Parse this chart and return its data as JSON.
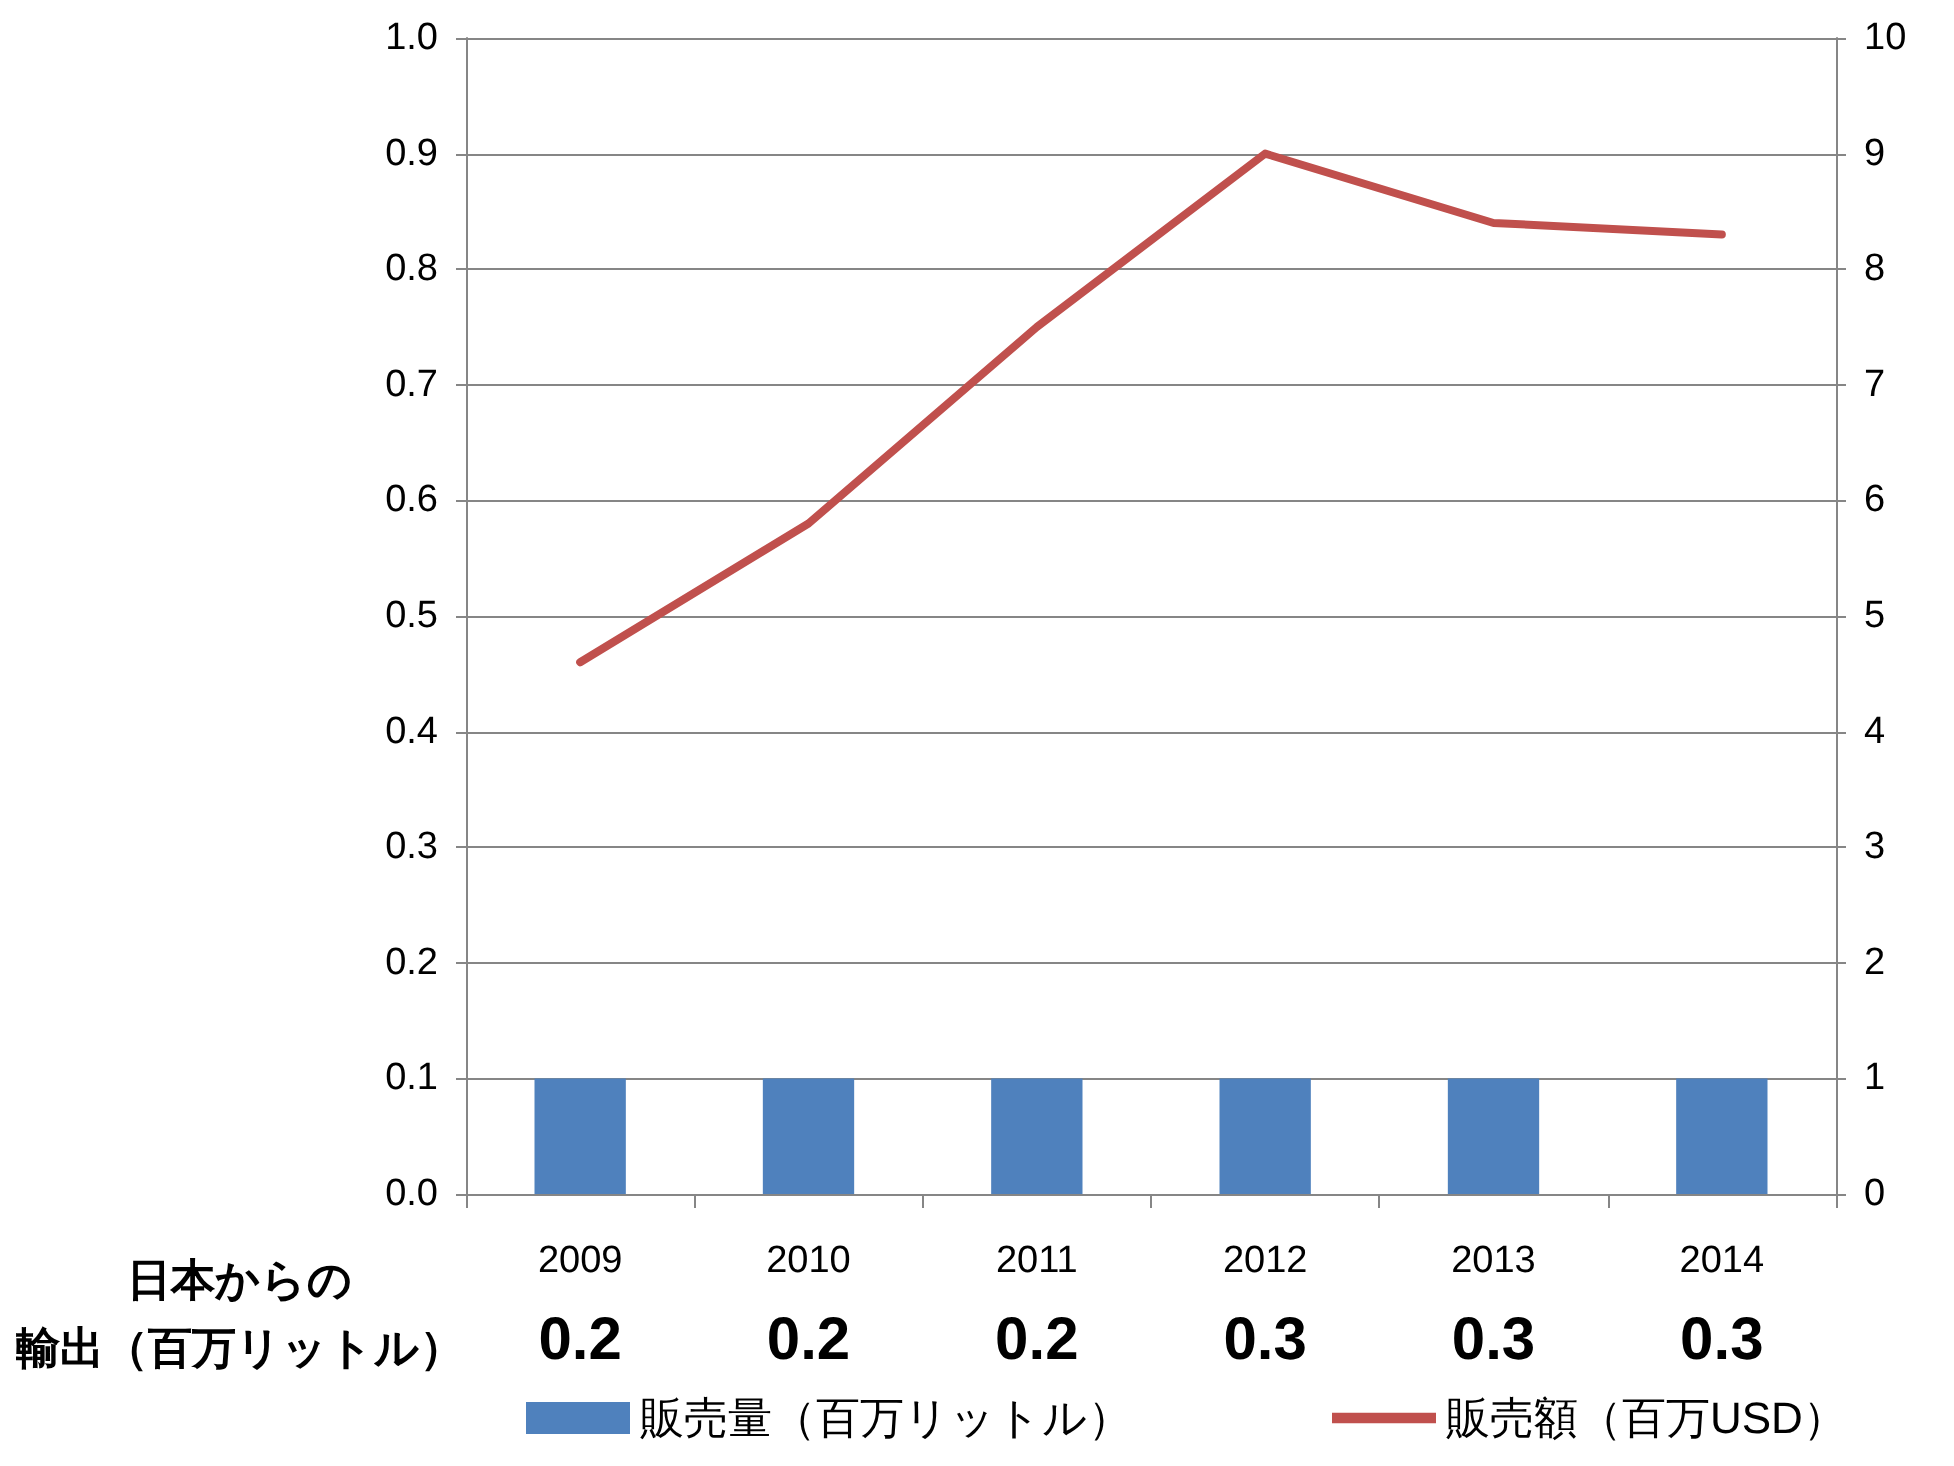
{
  "chart_data": {
    "type": "bar",
    "categories": [
      "2009",
      "2010",
      "2011",
      "2012",
      "2013",
      "2014"
    ],
    "series": [
      {
        "name": "販売量（百万リットル）",
        "color": "#4f81bd",
        "values": [
          0.1,
          0.1,
          0.1,
          0.1,
          0.1,
          0.1
        ]
      },
      {
        "name": "販売額（百万USD）",
        "type": "line",
        "axis": "y2",
        "color": "#c0504d",
        "values": [
          4.6,
          5.8,
          7.5,
          9.0,
          8.4,
          8.3
        ]
      }
    ],
    "ylim": [
      0,
      1
    ],
    "yticks": [
      {
        "value": 0,
        "label": "0.0"
      },
      {
        "value": 0.1,
        "label": "0.1"
      },
      {
        "value": 0.2,
        "label": "0.2"
      },
      {
        "value": 0.3,
        "label": "0.3"
      },
      {
        "value": 0.4,
        "label": "0.4"
      },
      {
        "value": 0.5,
        "label": "0.5"
      },
      {
        "value": 0.6,
        "label": "0.6"
      },
      {
        "value": 0.7,
        "label": "0.7"
      },
      {
        "value": 0.8,
        "label": "0.8"
      },
      {
        "value": 0.9,
        "label": "0.9"
      },
      {
        "value": 1,
        "label": "1.0"
      }
    ],
    "y2lim": [
      0,
      10
    ],
    "y2ticks": [
      0,
      1,
      2,
      3,
      4,
      5,
      6,
      7,
      8,
      9,
      10
    ],
    "grid": "y",
    "legend": "bottom",
    "marker": "none",
    "line_style": "solid",
    "annotations": [
      "日本からの",
      "輸出（百万リットル）",
      "0.2",
      "0.2",
      "0.2",
      "0.3",
      "0.3",
      "0.3"
    ]
  }
}
